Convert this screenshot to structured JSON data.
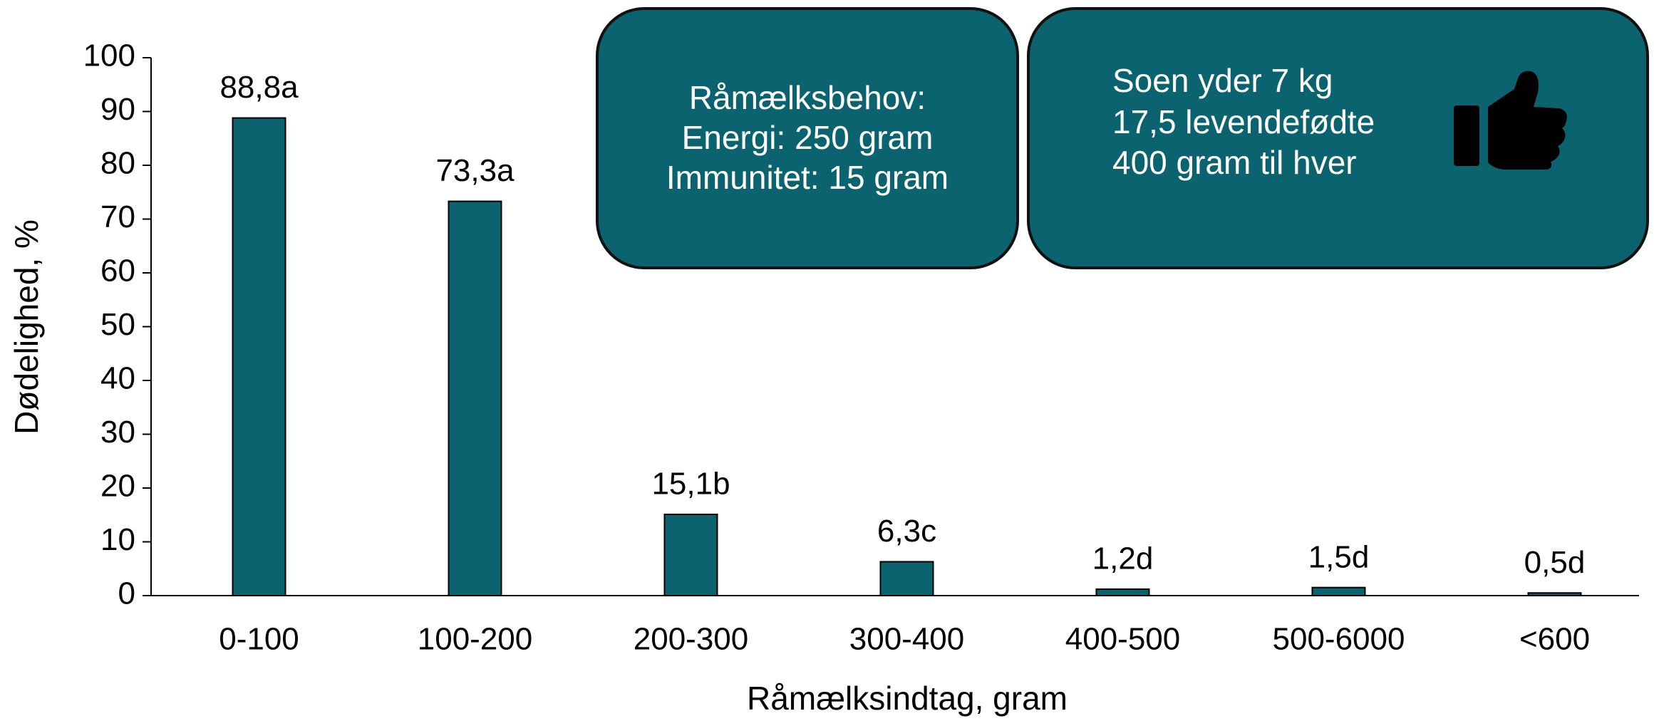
{
  "chart_data": {
    "type": "bar",
    "y_label": "Dødelighed, %",
    "x_label": "Råmælksindtag, gram",
    "categories": [
      "0-100",
      "100-200",
      "200-300",
      "300-400",
      "400-500",
      "500-6000",
      "<600"
    ],
    "values": [
      88.8,
      73.3,
      15.1,
      6.3,
      1.2,
      1.5,
      0.5
    ],
    "value_labels": [
      "88,8a",
      "73,3a",
      "15,1b",
      "6,3c",
      "1,2d",
      "1,5d",
      "0,5d"
    ],
    "color": "#0b6370",
    "ylim": [
      0,
      100
    ],
    "yticks": [
      0,
      10,
      20,
      30,
      40,
      50,
      60,
      70,
      80,
      90,
      100
    ],
    "grid": false,
    "annotations": [
      {
        "lines": [
          "Råmælksbehov:",
          "Energi: 250 gram",
          "Immunitet: 15 gram"
        ]
      },
      {
        "lines": [
          "Soen yder 7 kg",
          "17,5 levendefødte",
          "400 gram til hver"
        ]
      }
    ]
  }
}
